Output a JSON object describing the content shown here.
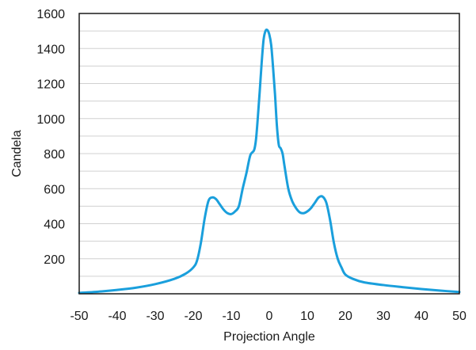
{
  "chart_data": {
    "type": "line",
    "title": "",
    "xlabel": "Projection Angle",
    "ylabel": "Candela",
    "xlim": [
      -50,
      50
    ],
    "ylim": [
      0,
      1600
    ],
    "grid": "horizontal",
    "legend": "none",
    "x_ticks": [
      -50,
      -40,
      -30,
      -20,
      -10,
      0,
      10,
      20,
      30,
      40,
      50
    ],
    "y_ticks": [
      200,
      400,
      600,
      800,
      1000,
      1200,
      1400,
      1600
    ],
    "colors": {
      "line": "#1a9fdc",
      "grid": "#d0d0d0",
      "frame": "#1a1a1a"
    },
    "series": [
      {
        "x": [
          -50,
          -45,
          -40,
          -35,
          -30,
          -25,
          -22,
          -20,
          -19,
          -18,
          -17,
          -16,
          -15,
          -14,
          -13,
          -12,
          -11,
          -10,
          -9,
          -8,
          -7,
          -6,
          -5,
          -4,
          -3.5,
          -3,
          -2.5,
          -2,
          -1.5,
          -1,
          -0.5,
          0,
          0.5,
          1,
          1.5,
          2,
          2.5,
          3,
          3.5,
          4,
          5,
          6,
          7,
          8,
          9,
          10,
          11,
          12,
          13,
          14,
          15,
          16,
          17,
          18,
          19,
          20,
          22,
          25,
          30,
          35,
          40,
          45,
          50
        ],
        "values": [
          5,
          12,
          22,
          35,
          55,
          85,
          115,
          150,
          190,
          290,
          430,
          530,
          550,
          540,
          510,
          480,
          460,
          455,
          470,
          500,
          600,
          690,
          790,
          820,
          880,
          1010,
          1160,
          1320,
          1450,
          1500,
          1505,
          1480,
          1420,
          1290,
          1140,
          960,
          850,
          830,
          800,
          730,
          600,
          530,
          490,
          465,
          460,
          470,
          490,
          520,
          550,
          555,
          520,
          420,
          290,
          200,
          150,
          110,
          85,
          65,
          50,
          38,
          27,
          18,
          10
        ]
      }
    ]
  }
}
